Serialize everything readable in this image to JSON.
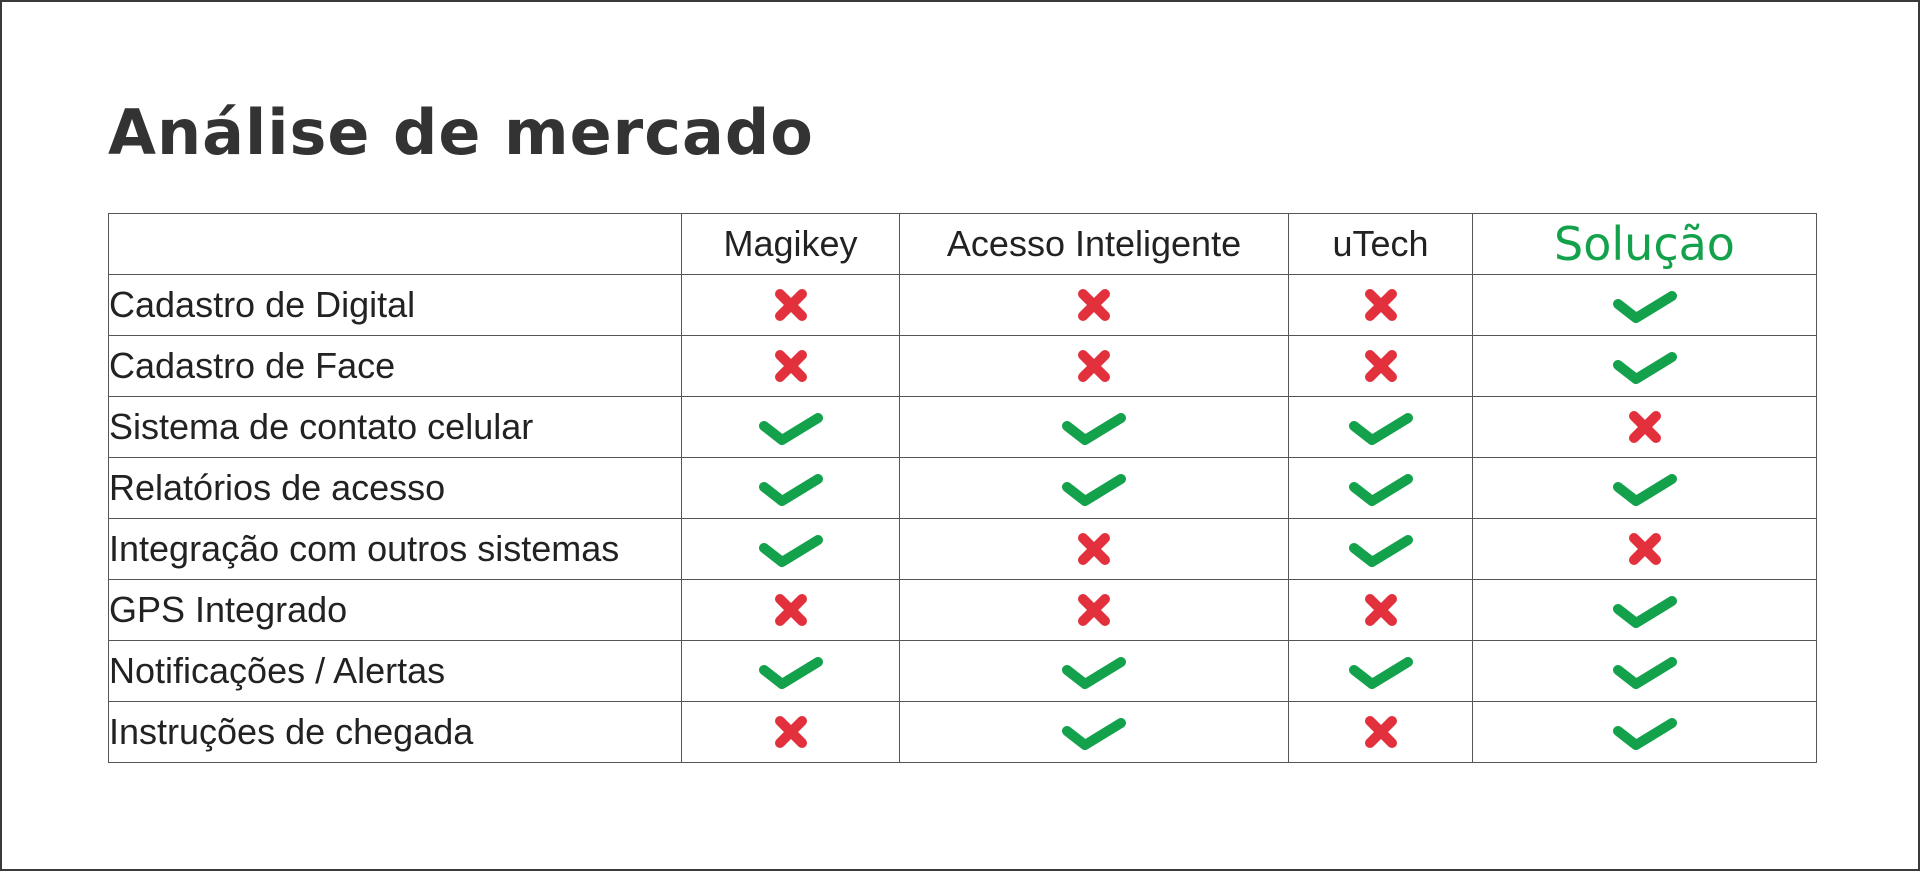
{
  "title": "Análise de mercado",
  "colors": {
    "check": "#13a24b",
    "cross": "#e2313c",
    "solution_header": "#13a24b"
  },
  "columns": [
    "",
    "Magikey",
    "Acesso Inteligente",
    "uTech",
    "Solução"
  ],
  "rows": [
    {
      "feature": "Cadastro de Digital",
      "values": [
        "cross-icon",
        "cross-icon",
        "cross-icon",
        "check-icon"
      ]
    },
    {
      "feature": "Cadastro de Face",
      "values": [
        "cross-icon",
        "cross-icon",
        "cross-icon",
        "check-icon"
      ]
    },
    {
      "feature": "Sistema de contato celular",
      "values": [
        "check-icon",
        "check-icon",
        "check-icon",
        "cross-icon"
      ]
    },
    {
      "feature": "Relatórios de acesso",
      "values": [
        "check-icon",
        "check-icon",
        "check-icon",
        "check-icon"
      ]
    },
    {
      "feature": "Integração com outros sistemas",
      "values": [
        "check-icon",
        "cross-icon",
        "check-icon",
        "cross-icon"
      ]
    },
    {
      "feature": "GPS Integrado",
      "values": [
        "cross-icon",
        "cross-icon",
        "cross-icon",
        "check-icon"
      ]
    },
    {
      "feature": "Notificações / Alertas",
      "values": [
        "check-icon",
        "check-icon",
        "check-icon",
        "check-icon"
      ]
    },
    {
      "feature": "Instruções de chegada",
      "values": [
        "cross-icon",
        "check-icon",
        "cross-icon",
        "check-icon"
      ]
    }
  ]
}
